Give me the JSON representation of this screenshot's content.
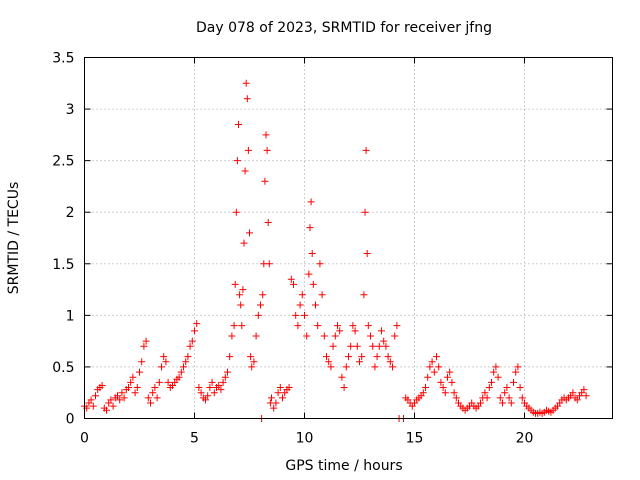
{
  "chart_data": {
    "type": "scatter",
    "title": "Day 078 of 2023, SRMTID for receiver jfng",
    "xlabel": "GPS time / hours",
    "ylabel": "SRMTID / TECUs",
    "xlim": [
      0,
      24
    ],
    "ylim": [
      0,
      3.5
    ],
    "grid": true,
    "marker": "plus",
    "color": "#ff0000",
    "x_ticks": [
      0,
      5,
      10,
      15,
      20
    ],
    "x_tick_labels": [
      "0",
      "5",
      "10",
      "15",
      "20"
    ],
    "y_ticks": [
      0,
      0.5,
      1,
      1.5,
      2,
      2.5,
      3,
      3.5
    ],
    "y_tick_labels": [
      "0",
      "0.5",
      "1",
      "1.5",
      "2",
      "2.5",
      "3",
      "3.5"
    ],
    "series": [
      {
        "name": "SRMTID",
        "points": [
          [
            0.0,
            0.12
          ],
          [
            0.1,
            0.1
          ],
          [
            0.2,
            0.15
          ],
          [
            0.3,
            0.18
          ],
          [
            0.4,
            0.12
          ],
          [
            0.5,
            0.22
          ],
          [
            0.6,
            0.28
          ],
          [
            0.7,
            0.3
          ],
          [
            0.8,
            0.32
          ],
          [
            0.9,
            0.1
          ],
          [
            1.0,
            0.08
          ],
          [
            1.1,
            0.15
          ],
          [
            1.2,
            0.18
          ],
          [
            1.3,
            0.12
          ],
          [
            1.4,
            0.2
          ],
          [
            1.5,
            0.22
          ],
          [
            1.6,
            0.18
          ],
          [
            1.7,
            0.25
          ],
          [
            1.8,
            0.2
          ],
          [
            1.9,
            0.28
          ],
          [
            2.0,
            0.3
          ],
          [
            2.1,
            0.35
          ],
          [
            2.2,
            0.4
          ],
          [
            2.3,
            0.25
          ],
          [
            2.4,
            0.3
          ],
          [
            2.5,
            0.45
          ],
          [
            2.6,
            0.55
          ],
          [
            2.7,
            0.7
          ],
          [
            2.8,
            0.75
          ],
          [
            2.9,
            0.2
          ],
          [
            3.0,
            0.15
          ],
          [
            3.1,
            0.25
          ],
          [
            3.2,
            0.3
          ],
          [
            3.3,
            0.2
          ],
          [
            3.4,
            0.35
          ],
          [
            3.5,
            0.5
          ],
          [
            3.6,
            0.6
          ],
          [
            3.7,
            0.55
          ],
          [
            3.8,
            0.35
          ],
          [
            3.9,
            0.3
          ],
          [
            4.0,
            0.32
          ],
          [
            4.1,
            0.35
          ],
          [
            4.2,
            0.38
          ],
          [
            4.3,
            0.4
          ],
          [
            4.4,
            0.45
          ],
          [
            4.5,
            0.5
          ],
          [
            4.6,
            0.55
          ],
          [
            4.7,
            0.6
          ],
          [
            4.8,
            0.7
          ],
          [
            4.9,
            0.75
          ],
          [
            5.0,
            0.85
          ],
          [
            5.1,
            0.92
          ],
          [
            5.2,
            0.3
          ],
          [
            5.3,
            0.25
          ],
          [
            5.4,
            0.2
          ],
          [
            5.5,
            0.18
          ],
          [
            5.6,
            0.22
          ],
          [
            5.7,
            0.3
          ],
          [
            5.8,
            0.35
          ],
          [
            5.9,
            0.25
          ],
          [
            6.0,
            0.3
          ],
          [
            6.1,
            0.32
          ],
          [
            6.2,
            0.28
          ],
          [
            6.3,
            0.35
          ],
          [
            6.4,
            0.4
          ],
          [
            6.5,
            0.45
          ],
          [
            6.6,
            0.6
          ],
          [
            6.7,
            0.8
          ],
          [
            6.8,
            0.9
          ],
          [
            6.85,
            1.3
          ],
          [
            6.9,
            2.0
          ],
          [
            6.95,
            2.5
          ],
          [
            7.0,
            2.85
          ],
          [
            7.05,
            1.2
          ],
          [
            7.1,
            1.1
          ],
          [
            7.15,
            0.9
          ],
          [
            7.2,
            1.25
          ],
          [
            7.25,
            1.7
          ],
          [
            7.3,
            2.4
          ],
          [
            7.35,
            3.25
          ],
          [
            7.4,
            3.1
          ],
          [
            7.45,
            2.6
          ],
          [
            7.5,
            1.8
          ],
          [
            7.55,
            0.6
          ],
          [
            7.6,
            0.5
          ],
          [
            7.7,
            0.55
          ],
          [
            7.8,
            0.8
          ],
          [
            7.9,
            1.0
          ],
          [
            8.0,
            1.1
          ],
          [
            8.05,
            0.0
          ],
          [
            8.1,
            1.2
          ],
          [
            8.15,
            1.5
          ],
          [
            8.2,
            2.3
          ],
          [
            8.25,
            2.75
          ],
          [
            8.3,
            2.6
          ],
          [
            8.35,
            1.9
          ],
          [
            8.4,
            1.5
          ],
          [
            8.45,
            0.15
          ],
          [
            8.5,
            0.2
          ],
          [
            8.6,
            0.1
          ],
          [
            8.7,
            0.15
          ],
          [
            8.8,
            0.25
          ],
          [
            8.9,
            0.3
          ],
          [
            9.0,
            0.2
          ],
          [
            9.1,
            0.25
          ],
          [
            9.2,
            0.28
          ],
          [
            9.3,
            0.3
          ],
          [
            9.4,
            1.35
          ],
          [
            9.5,
            1.3
          ],
          [
            9.6,
            1.0
          ],
          [
            9.7,
            0.9
          ],
          [
            9.8,
            1.1
          ],
          [
            9.9,
            1.2
          ],
          [
            10.0,
            1.0
          ],
          [
            10.1,
            0.8
          ],
          [
            10.2,
            1.4
          ],
          [
            10.25,
            1.85
          ],
          [
            10.3,
            2.1
          ],
          [
            10.35,
            1.6
          ],
          [
            10.4,
            1.3
          ],
          [
            10.5,
            1.1
          ],
          [
            10.6,
            0.9
          ],
          [
            10.7,
            1.5
          ],
          [
            10.8,
            1.2
          ],
          [
            10.9,
            0.8
          ],
          [
            11.0,
            0.6
          ],
          [
            11.1,
            0.55
          ],
          [
            11.2,
            0.5
          ],
          [
            11.3,
            0.7
          ],
          [
            11.4,
            0.8
          ],
          [
            11.5,
            0.9
          ],
          [
            11.6,
            0.85
          ],
          [
            11.7,
            0.4
          ],
          [
            11.8,
            0.3
          ],
          [
            11.9,
            0.5
          ],
          [
            12.0,
            0.6
          ],
          [
            12.1,
            0.7
          ],
          [
            12.2,
            0.9
          ],
          [
            12.3,
            0.85
          ],
          [
            12.4,
            0.7
          ],
          [
            12.5,
            0.55
          ],
          [
            12.6,
            0.6
          ],
          [
            12.7,
            1.2
          ],
          [
            12.75,
            2.0
          ],
          [
            12.8,
            2.6
          ],
          [
            12.85,
            1.6
          ],
          [
            12.9,
            0.9
          ],
          [
            13.0,
            0.8
          ],
          [
            13.1,
            0.7
          ],
          [
            13.2,
            0.5
          ],
          [
            13.3,
            0.6
          ],
          [
            13.4,
            0.7
          ],
          [
            13.5,
            0.85
          ],
          [
            13.6,
            0.75
          ],
          [
            13.7,
            0.7
          ],
          [
            13.8,
            0.6
          ],
          [
            13.9,
            0.55
          ],
          [
            14.0,
            0.5
          ],
          [
            14.1,
            0.8
          ],
          [
            14.2,
            0.9
          ],
          [
            14.3,
            0.0
          ],
          [
            14.5,
            0.0
          ],
          [
            14.6,
            0.2
          ],
          [
            14.7,
            0.18
          ],
          [
            14.8,
            0.15
          ],
          [
            14.9,
            0.12
          ],
          [
            15.0,
            0.15
          ],
          [
            15.1,
            0.18
          ],
          [
            15.2,
            0.2
          ],
          [
            15.3,
            0.22
          ],
          [
            15.4,
            0.25
          ],
          [
            15.5,
            0.3
          ],
          [
            15.6,
            0.4
          ],
          [
            15.7,
            0.5
          ],
          [
            15.8,
            0.55
          ],
          [
            15.9,
            0.45
          ],
          [
            16.0,
            0.6
          ],
          [
            16.1,
            0.5
          ],
          [
            16.2,
            0.35
          ],
          [
            16.3,
            0.3
          ],
          [
            16.4,
            0.25
          ],
          [
            16.5,
            0.4
          ],
          [
            16.6,
            0.45
          ],
          [
            16.7,
            0.35
          ],
          [
            16.8,
            0.25
          ],
          [
            16.9,
            0.2
          ],
          [
            17.0,
            0.15
          ],
          [
            17.1,
            0.12
          ],
          [
            17.2,
            0.1
          ],
          [
            17.3,
            0.08
          ],
          [
            17.4,
            0.1
          ],
          [
            17.5,
            0.12
          ],
          [
            17.6,
            0.15
          ],
          [
            17.7,
            0.12
          ],
          [
            17.8,
            0.1
          ],
          [
            17.9,
            0.12
          ],
          [
            18.0,
            0.15
          ],
          [
            18.1,
            0.2
          ],
          [
            18.2,
            0.25
          ],
          [
            18.3,
            0.2
          ],
          [
            18.4,
            0.3
          ],
          [
            18.5,
            0.35
          ],
          [
            18.6,
            0.45
          ],
          [
            18.7,
            0.5
          ],
          [
            18.8,
            0.4
          ],
          [
            18.9,
            0.2
          ],
          [
            19.0,
            0.15
          ],
          [
            19.1,
            0.25
          ],
          [
            19.2,
            0.3
          ],
          [
            19.3,
            0.2
          ],
          [
            19.4,
            0.15
          ],
          [
            19.5,
            0.35
          ],
          [
            19.6,
            0.45
          ],
          [
            19.7,
            0.5
          ],
          [
            19.8,
            0.3
          ],
          [
            19.9,
            0.2
          ],
          [
            20.0,
            0.15
          ],
          [
            20.1,
            0.12
          ],
          [
            20.2,
            0.1
          ],
          [
            20.3,
            0.08
          ],
          [
            20.4,
            0.06
          ],
          [
            20.5,
            0.05
          ],
          [
            20.6,
            0.05
          ],
          [
            20.7,
            0.06
          ],
          [
            20.8,
            0.05
          ],
          [
            20.9,
            0.06
          ],
          [
            21.0,
            0.08
          ],
          [
            21.1,
            0.07
          ],
          [
            21.2,
            0.06
          ],
          [
            21.3,
            0.08
          ],
          [
            21.4,
            0.1
          ],
          [
            21.5,
            0.12
          ],
          [
            21.6,
            0.15
          ],
          [
            21.7,
            0.18
          ],
          [
            21.8,
            0.2
          ],
          [
            21.9,
            0.18
          ],
          [
            22.0,
            0.2
          ],
          [
            22.1,
            0.22
          ],
          [
            22.2,
            0.25
          ],
          [
            22.3,
            0.2
          ],
          [
            22.4,
            0.18
          ],
          [
            22.5,
            0.22
          ],
          [
            22.6,
            0.25
          ],
          [
            22.7,
            0.28
          ],
          [
            22.8,
            0.22
          ]
        ]
      }
    ]
  }
}
